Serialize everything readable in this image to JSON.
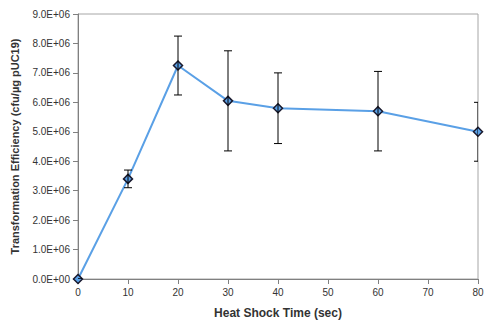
{
  "chart_data": {
    "type": "line",
    "x_label": "Heat Shock Time (sec)",
    "y_label": "Transformation Efficiency (cfu/µg pUC19)",
    "x": [
      0,
      10,
      20,
      30,
      40,
      60,
      80
    ],
    "values": [
      0,
      3400000,
      7250000,
      6050000,
      5800000,
      5700000,
      5000000
    ],
    "errors": [
      0,
      300000,
      1000000,
      1700000,
      1200000,
      1350000,
      1000000
    ],
    "color": "#5aa0e6",
    "marker": "diamond",
    "line_style": "solid",
    "xlim": [
      0,
      80
    ],
    "xticks": [
      0,
      10,
      20,
      30,
      40,
      50,
      60,
      70,
      80
    ],
    "ylim": [
      0,
      9000000
    ],
    "yticks": [
      {
        "value": 0,
        "label": "0.0E+00"
      },
      {
        "value": 1000000,
        "label": "1.0E+06"
      },
      {
        "value": 2000000,
        "label": "2.0E+06"
      },
      {
        "value": 3000000,
        "label": "3.0E+06"
      },
      {
        "value": 4000000,
        "label": "4.0E+06"
      },
      {
        "value": 5000000,
        "label": "5.0E+06"
      },
      {
        "value": 6000000,
        "label": "6.0E+06"
      },
      {
        "value": 7000000,
        "label": "7.0E+06"
      },
      {
        "value": 8000000,
        "label": "8.0E+06"
      },
      {
        "value": 9000000,
        "label": "9.0E+06"
      }
    ],
    "grid": false
  }
}
